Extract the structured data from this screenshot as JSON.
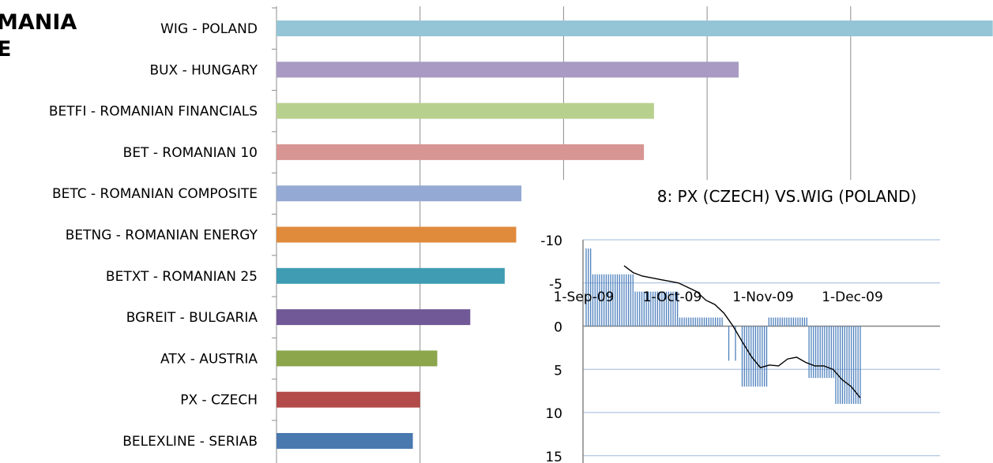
{
  "page": {
    "title_line1": "MANIA",
    "title_line2": "E"
  },
  "chart_data": [
    {
      "type": "bar",
      "orientation": "horizontal",
      "categories": [
        "WIG - POLAND",
        "BUX - HUNGARY",
        "BETFI - ROMANIAN FINANCIALS",
        "BET - ROMANIAN 10",
        "BETC - ROMANIAN COMPOSITE",
        "BETNG - ROMANIAN ENERGY",
        "BETXT - ROMANIAN 25",
        "BGREIT - BULGARIA",
        "ATX - AUSTRIA",
        "PX - CZECH",
        "BELEXLINE - SERIAB"
      ],
      "values": [
        4.99,
        3.22,
        2.63,
        2.56,
        2.12,
        1.67,
        1.59,
        1.35,
        1.12,
        1.0,
        0.95
      ],
      "colors": [
        "#93C5D6",
        "#A89AC2",
        "#B8D08E",
        "#D79593",
        "#94A9D3",
        "#E08A3C",
        "#3F9CB2",
        "#715896",
        "#8BA64B",
        "#B24B49",
        "#4A79AF"
      ],
      "xlim": [
        0,
        5
      ],
      "grid": true,
      "title": "",
      "xlabel": "",
      "ylabel": ""
    },
    {
      "type": "bar+line",
      "title": "8: PX (CZECH) VS.WIG (POLAND)",
      "x_tick_labels": [
        "1-Sep-09",
        "1-Oct-09",
        "1-Nov-09",
        "1-Dec-09"
      ],
      "y_tick_labels": [
        "-10",
        "-5",
        "0",
        "5",
        "10",
        "15"
      ],
      "ylim": [
        -10,
        15
      ],
      "y_inverted": true,
      "grid": true,
      "bar_color": "#4F81BD",
      "line_color": "#000000",
      "series": [
        {
          "kind": "bar",
          "values": [
            -9,
            -9,
            -9,
            -6,
            -6,
            -6,
            -6,
            -6,
            -6,
            -6,
            -6,
            -6,
            -6,
            -6,
            -6,
            -6,
            -6,
            -6,
            -6,
            -6,
            -6,
            -6,
            -4,
            -4,
            -4,
            -4,
            -4,
            -4,
            -4,
            -4,
            -4,
            -4,
            -4,
            -4,
            -4,
            -4,
            -4,
            -4,
            -4,
            -4,
            -4,
            -4,
            -1,
            -1,
            -1,
            -1,
            -1,
            -1,
            -1,
            -1,
            -1,
            -1,
            -1,
            -1,
            -1,
            -1,
            -1,
            -1,
            -1,
            -1,
            -1,
            -1,
            0,
            0,
            4,
            0,
            0,
            4,
            0,
            0,
            7,
            7,
            7,
            7,
            7,
            7,
            7,
            7,
            7,
            7,
            7,
            7,
            -1,
            -1,
            -1,
            -1,
            -1,
            -1,
            -1,
            -1,
            -1,
            -1,
            -1,
            -1,
            -1,
            -1,
            -1,
            -1,
            -1,
            -1,
            6,
            6,
            6,
            6,
            6,
            6,
            6,
            6,
            6,
            6,
            6,
            6,
            9,
            9,
            9,
            9,
            9,
            9,
            9,
            9,
            9,
            9,
            9,
            9
          ]
        },
        {
          "kind": "line",
          "values": [
            -7,
            -6.2,
            -5.8,
            -5.6,
            -5.4,
            -5.2,
            -5,
            -4.5,
            -4,
            -3,
            -2.5,
            -1.5,
            0,
            1.8,
            3.5,
            4.8,
            4.5,
            4.6,
            3.8,
            3.6,
            4.2,
            4.6,
            4.6,
            5,
            6.2,
            7,
            8.3
          ]
        }
      ]
    }
  ]
}
